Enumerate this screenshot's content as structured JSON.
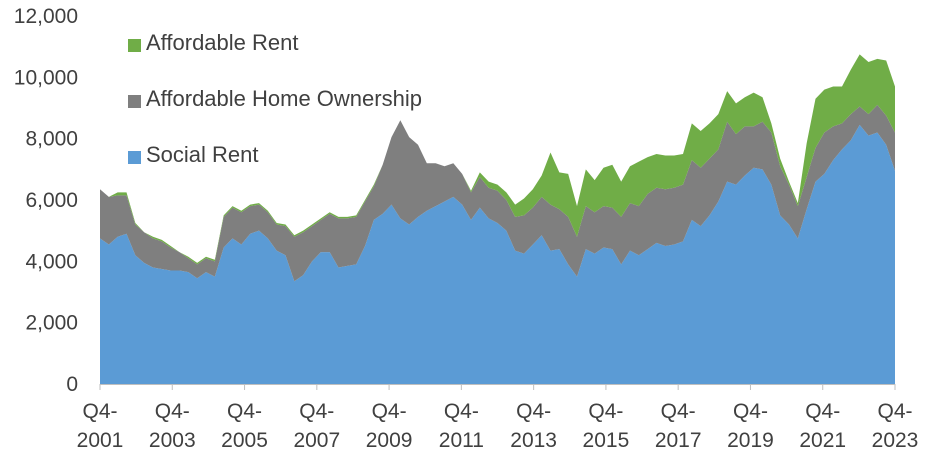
{
  "chart_data": {
    "type": "area",
    "stacked": true,
    "x_tick_labels": [
      [
        "Q4-",
        "2001"
      ],
      [
        "Q4-",
        "2003"
      ],
      [
        "Q4-",
        "2005"
      ],
      [
        "Q4-",
        "2007"
      ],
      [
        "Q4-",
        "2009"
      ],
      [
        "Q4-",
        "2011"
      ],
      [
        "Q4-",
        "2013"
      ],
      [
        "Q4-",
        "2015"
      ],
      [
        "Q4-",
        "2017"
      ],
      [
        "Q4-",
        "2019"
      ],
      [
        "Q4-",
        "2021"
      ],
      [
        "Q4-",
        "2023"
      ]
    ],
    "y_ticks": [
      "0",
      "2,000",
      "4,000",
      "6,000",
      "8,000",
      "10,000",
      "12,000"
    ],
    "ylim": [
      0,
      12000
    ],
    "x_range": [
      "Q4-2001",
      "Q4-2023"
    ],
    "legend_position": "top-left",
    "series": [
      {
        "name": "Social Rent",
        "color": "#5b9bd5",
        "values": [
          4750,
          4550,
          4800,
          4900,
          4200,
          3950,
          3800,
          3750,
          3700,
          3700,
          3650,
          3450,
          3650,
          3500,
          4450,
          4750,
          4550,
          4900,
          5000,
          4750,
          4350,
          4200,
          3350,
          3550,
          4000,
          4300,
          4300,
          3800,
          3850,
          3900,
          4500,
          5350,
          5550,
          5850,
          5400,
          5200,
          5450,
          5650,
          5800,
          5950,
          6100,
          5850,
          5350,
          5750,
          5400,
          5250,
          5000,
          4350,
          4250,
          4550,
          4850,
          4350,
          4400,
          3900,
          3500,
          4400,
          4250,
          4450,
          4400,
          3900,
          4350,
          4200,
          4400,
          4600,
          4500,
          4550,
          4650,
          5350,
          5150,
          5500,
          5950,
          6600,
          6500,
          6800,
          7050,
          7000,
          6500,
          5500,
          5200,
          4750,
          5700,
          6600,
          6850,
          7300,
          7650,
          7950,
          8450,
          8100,
          8200,
          7800,
          6950
        ]
      },
      {
        "name": "Affordable Home Ownership",
        "color": "#7f7f7f",
        "values": [
          1600,
          1550,
          1350,
          1250,
          1000,
          1000,
          950,
          900,
          750,
          600,
          450,
          450,
          450,
          500,
          1000,
          1000,
          1050,
          900,
          850,
          850,
          850,
          950,
          1450,
          1400,
          1150,
          1050,
          1250,
          1600,
          1550,
          1550,
          1450,
          1100,
          1600,
          2200,
          3200,
          2850,
          2350,
          1550,
          1400,
          1150,
          1100,
          1000,
          900,
          1000,
          1000,
          1050,
          1000,
          1100,
          1250,
          1200,
          1250,
          1500,
          1300,
          1550,
          1300,
          1400,
          1350,
          1350,
          1350,
          1550,
          1550,
          1600,
          1800,
          1800,
          1850,
          1850,
          1850,
          1950,
          1900,
          1850,
          1700,
          1950,
          1650,
          1600,
          1350,
          1550,
          1700,
          1600,
          1300,
          1050,
          1050,
          1100,
          1350,
          1100,
          850,
          850,
          600,
          700,
          900,
          950,
          1250
        ]
      },
      {
        "name": "Affordable Rent",
        "color": "#70ad47",
        "values": [
          0,
          0,
          100,
          100,
          50,
          0,
          50,
          50,
          50,
          0,
          50,
          50,
          50,
          50,
          50,
          50,
          50,
          50,
          50,
          50,
          50,
          50,
          50,
          50,
          50,
          50,
          50,
          50,
          50,
          50,
          50,
          50,
          0,
          0,
          0,
          0,
          0,
          0,
          0,
          0,
          0,
          0,
          50,
          150,
          200,
          200,
          250,
          400,
          550,
          600,
          700,
          1700,
          1200,
          1400,
          1000,
          1200,
          1050,
          1250,
          1400,
          1150,
          1200,
          1450,
          1200,
          1100,
          1100,
          1050,
          1000,
          1200,
          1200,
          1150,
          1150,
          1000,
          1000,
          950,
          1100,
          800,
          300,
          250,
          100,
          100,
          1100,
          1600,
          1400,
          1300,
          1200,
          1450,
          1700,
          1700,
          1500,
          1800,
          1500
        ]
      }
    ],
    "legend_order": [
      "Affordable Rent",
      "Affordable Home Ownership",
      "Social Rent"
    ]
  }
}
